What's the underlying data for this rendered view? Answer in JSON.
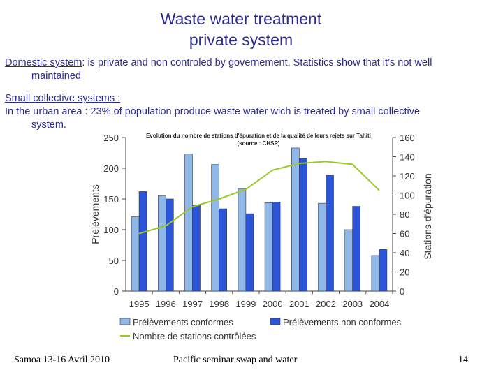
{
  "slide": {
    "title_line1": "Waste water treatment",
    "title_line2": "private system",
    "domestic_label": "Domestic system",
    "domestic_text": ": is private and non controled by governement. Statistics show that it’s not well",
    "domestic_text2": "maintained",
    "small_label": "Small collective systems :",
    "small_text": "In the urban area : 23% of population produce waste water wich is treated by small collective",
    "small_text2": "system.",
    "footer_left": "Samoa 13-16 Avril 2010",
    "footer_center": "Pacific seminar swap and water",
    "page_number": "14"
  },
  "chart_data": {
    "type": "bar",
    "title": "Evolution du nombre de stations d'épuration et de la qualité de leurs rejets sur Tahiti",
    "subtitle": "(source : CHSP)",
    "categories": [
      "1995",
      "1996",
      "1997",
      "1998",
      "1999",
      "2000",
      "2001",
      "2002",
      "2003",
      "2004"
    ],
    "ylabel": "Prélèvements",
    "ylim": [
      0,
      250
    ],
    "yticks": [
      "0",
      "50",
      "100",
      "150",
      "200",
      "250"
    ],
    "y2label": "Stations d'épuration",
    "y2lim": [
      0,
      160
    ],
    "y2ticks": [
      "0",
      "20",
      "40",
      "60",
      "80",
      "100",
      "120",
      "140",
      "160"
    ],
    "series": [
      {
        "name": "Prélèvements conformes",
        "type": "bar",
        "axis": "left",
        "color": "#8fb8e8",
        "values": [
          121,
          155,
          223,
          206,
          167,
          144,
          233,
          143,
          100,
          58
        ]
      },
      {
        "name": "Prélèvements non conformes",
        "type": "bar",
        "axis": "left",
        "color": "#2b55d8",
        "values": [
          162,
          150,
          140,
          134,
          126,
          145,
          216,
          189,
          138,
          68
        ]
      },
      {
        "name": "Nombre de stations contrôlées",
        "type": "line",
        "axis": "right",
        "color": "#9cc92a",
        "values": [
          60,
          68,
          88,
          96,
          106,
          126,
          133,
          135,
          132,
          105
        ]
      }
    ],
    "grid": false,
    "legend": "bottom"
  }
}
